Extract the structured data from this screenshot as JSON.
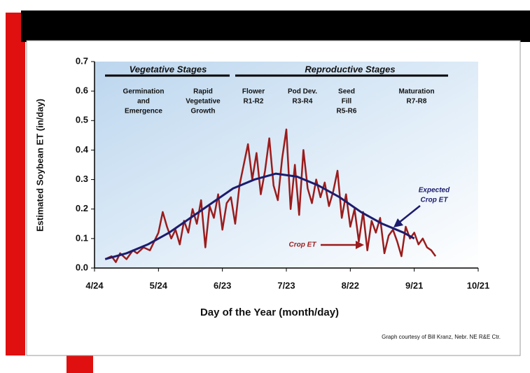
{
  "chart_data": {
    "type": "line",
    "x_label": "Day of the Year (month/day)",
    "y_label": "Estimated Soybean ET (in/day)",
    "credit": "Graph courtesy of Bill Kranz, Nebr. NE R&E Ctr.",
    "xlim": [
      0,
      180
    ],
    "xticks": [
      {
        "value": 0,
        "label": "4/24"
      },
      {
        "value": 30,
        "label": "5/24"
      },
      {
        "value": 60,
        "label": "6/23"
      },
      {
        "value": 90,
        "label": "7/23"
      },
      {
        "value": 120,
        "label": "8/22"
      },
      {
        "value": 150,
        "label": "9/21"
      },
      {
        "value": 180,
        "label": "10/21"
      }
    ],
    "ylim": [
      0,
      0.7
    ],
    "yticks": [
      {
        "value": 0,
        "label": "0.0"
      },
      0.1,
      0.2,
      0.3,
      0.4,
      0.5,
      0.6,
      0.7
    ],
    "grid": false,
    "stage_groups": [
      "Vegetative Stages",
      "Reproductive Stages"
    ],
    "stages": [
      {
        "lines": [
          "Germination",
          "and",
          "Emergence"
        ]
      },
      {
        "lines": [
          "Rapid",
          "Vegetative",
          "Growth"
        ]
      },
      {
        "lines": [
          "Flower",
          "R1-R2"
        ]
      },
      {
        "lines": [
          "Pod Dev.",
          "R3-R4"
        ]
      },
      {
        "lines": [
          "Seed",
          "Fill",
          "R5-R6"
        ]
      },
      {
        "lines": [
          "Maturation",
          "R7-R8"
        ]
      }
    ],
    "annotations": {
      "expected": [
        "Expected",
        "Crop ET"
      ],
      "crop": "Crop ET"
    },
    "series": [
      {
        "name": "Crop ET",
        "color": "#9b1c1c",
        "x": [
          5,
          8,
          10,
          12,
          15,
          18,
          20,
          23,
          26,
          28,
          30,
          32,
          34,
          36,
          38,
          40,
          42,
          44,
          46,
          48,
          50,
          52,
          54,
          56,
          58,
          60,
          62,
          64,
          66,
          68,
          70,
          72,
          74,
          76,
          78,
          80,
          82,
          84,
          86,
          88,
          90,
          92,
          94,
          96,
          98,
          100,
          102,
          104,
          106,
          108,
          110,
          112,
          114,
          116,
          118,
          120,
          122,
          124,
          126,
          128,
          130,
          132,
          134,
          136,
          138,
          140,
          142,
          144,
          146,
          148,
          150,
          152,
          154,
          156,
          158,
          160
        ],
        "values": [
          0.03,
          0.04,
          0.02,
          0.05,
          0.03,
          0.06,
          0.05,
          0.07,
          0.06,
          0.09,
          0.12,
          0.19,
          0.14,
          0.1,
          0.13,
          0.08,
          0.16,
          0.12,
          0.2,
          0.15,
          0.23,
          0.07,
          0.21,
          0.17,
          0.25,
          0.13,
          0.22,
          0.24,
          0.15,
          0.28,
          0.35,
          0.42,
          0.3,
          0.39,
          0.25,
          0.33,
          0.44,
          0.28,
          0.23,
          0.37,
          0.47,
          0.2,
          0.35,
          0.18,
          0.4,
          0.27,
          0.22,
          0.3,
          0.24,
          0.29,
          0.21,
          0.26,
          0.33,
          0.17,
          0.25,
          0.14,
          0.2,
          0.09,
          0.19,
          0.06,
          0.16,
          0.12,
          0.17,
          0.05,
          0.11,
          0.13,
          0.09,
          0.04,
          0.14,
          0.1,
          0.12,
          0.08,
          0.1,
          0.07,
          0.06,
          0.04
        ]
      },
      {
        "name": "Expected Crop ET",
        "color": "#1c1c6e",
        "x": [
          5,
          15,
          25,
          35,
          45,
          55,
          65,
          75,
          85,
          95,
          105,
          115,
          125,
          135,
          145,
          150
        ],
        "values": [
          0.03,
          0.05,
          0.08,
          0.12,
          0.17,
          0.22,
          0.27,
          0.3,
          0.32,
          0.31,
          0.28,
          0.24,
          0.19,
          0.15,
          0.12,
          0.1
        ]
      }
    ]
  }
}
